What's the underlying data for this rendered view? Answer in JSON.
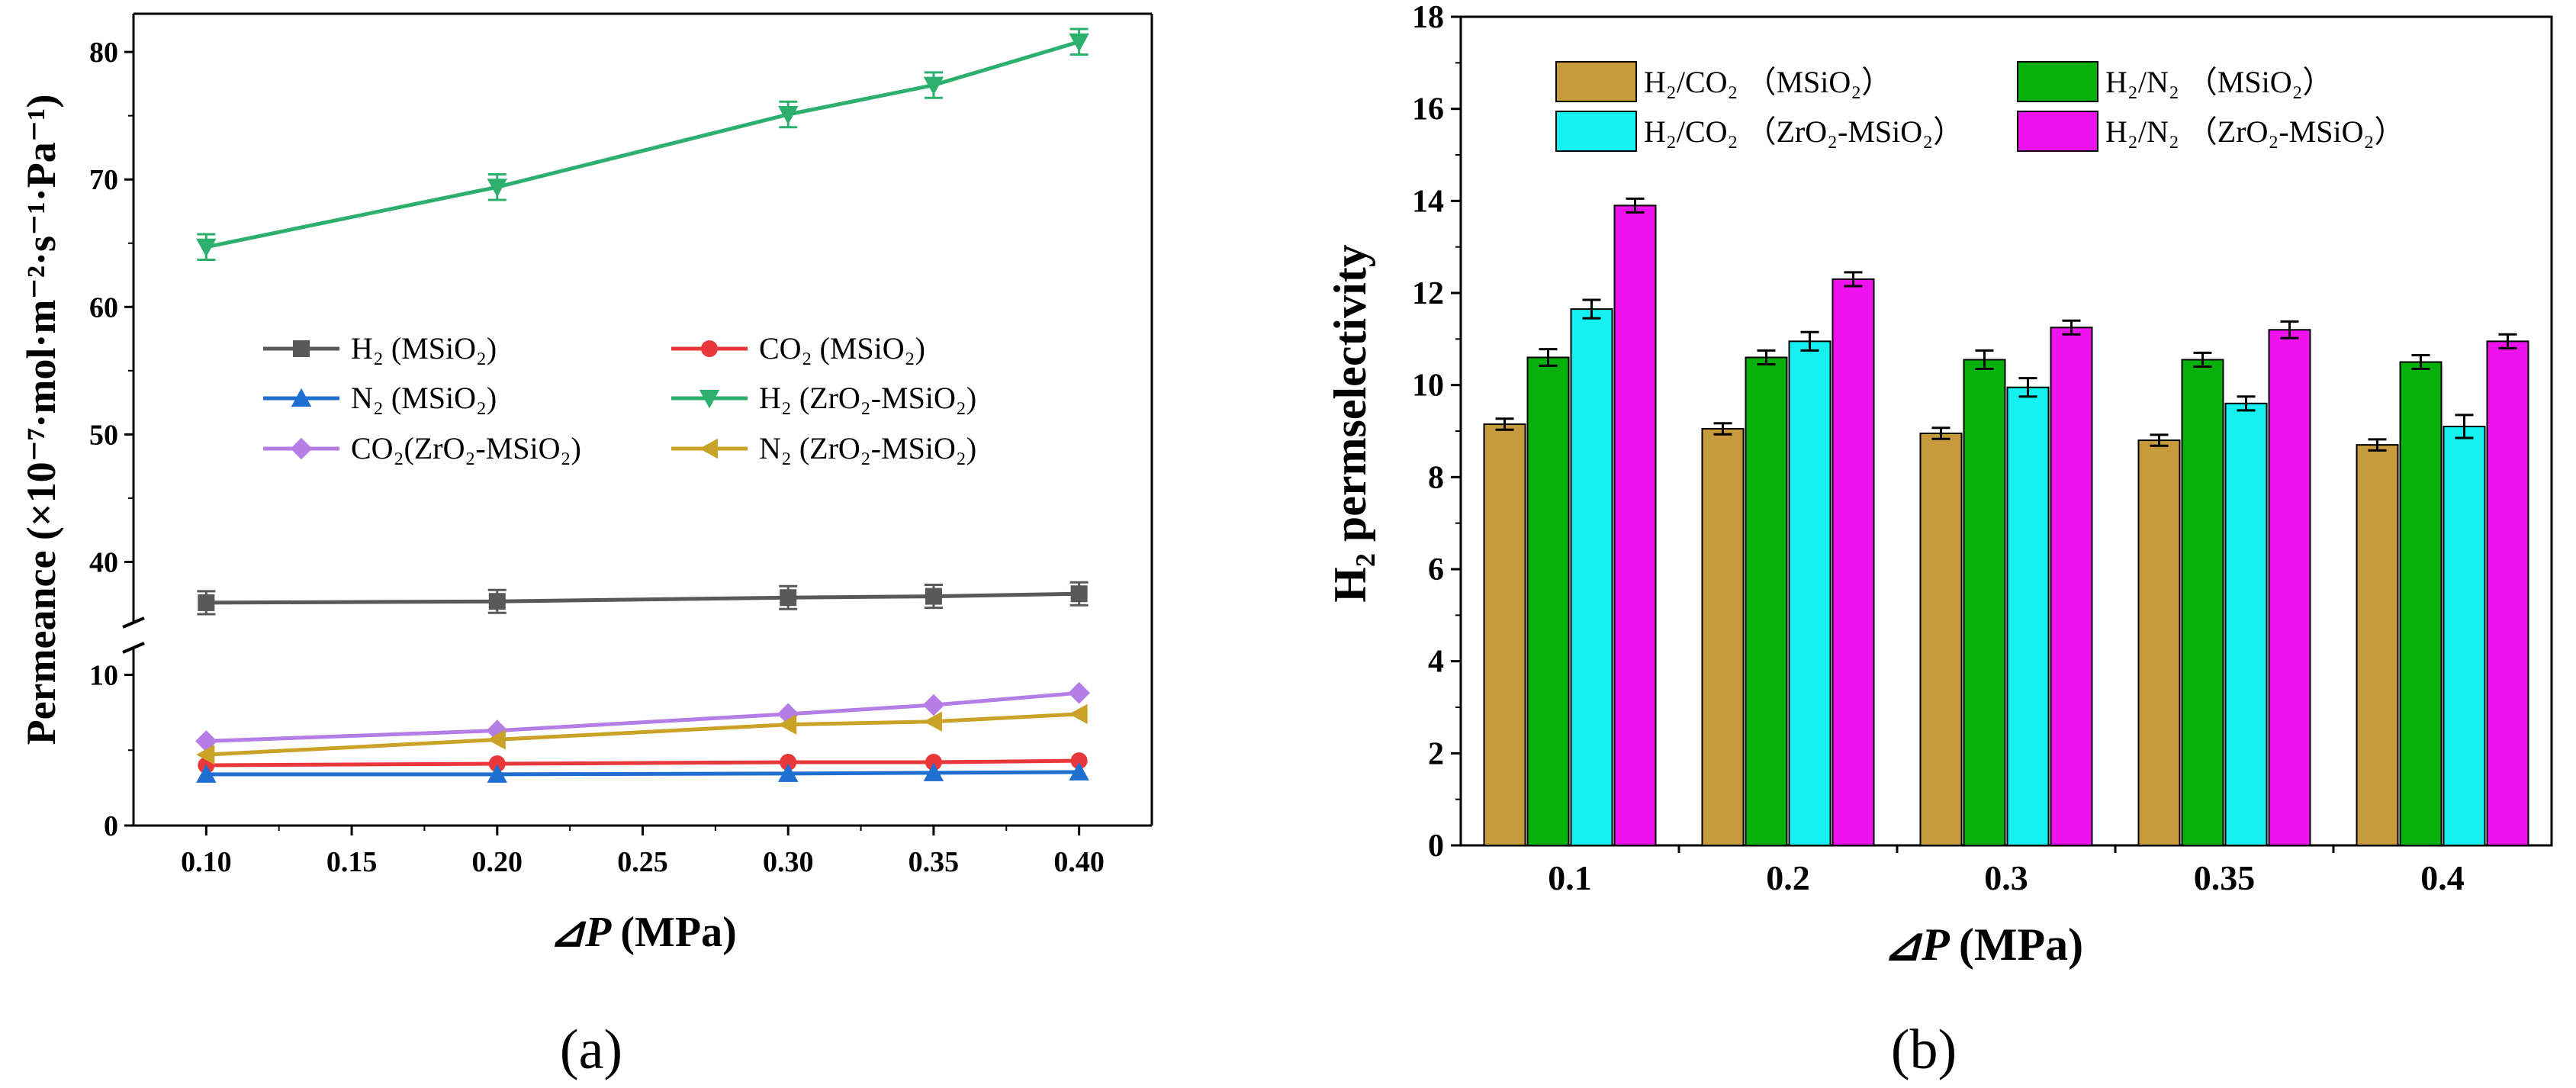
{
  "chart_data": [
    {
      "type": "line",
      "panel_label": "(a)",
      "xlabel_symbol": "⊿P",
      "xlabel_unit": "(MPa)",
      "ylabel": "Permeance (×10⁻⁷·mol·m⁻²·s⁻¹·Pa⁻¹)",
      "x": [
        0.1,
        0.2,
        0.3,
        0.35,
        0.4
      ],
      "x_ticks": [
        "0.10",
        "0.15",
        "0.20",
        "0.25",
        "0.30",
        "0.35",
        "0.40"
      ],
      "y_ticks_lower": [
        "0",
        "10"
      ],
      "y_ticks_upper": [
        "40",
        "50",
        "60",
        "70",
        "80"
      ],
      "y_break": [
        12,
        35
      ],
      "series": [
        {
          "name": "H₂      (MSiO₂)",
          "color": "#595959",
          "marker": "square",
          "values": [
            36.8,
            36.9,
            37.2,
            37.3,
            37.5
          ],
          "err": [
            0.9,
            0.9,
            0.9,
            0.9,
            0.9
          ]
        },
        {
          "name": "CO₂   (MSiO₂)",
          "color": "#e8383b",
          "marker": "circle",
          "values": [
            4.0,
            4.1,
            4.2,
            4.2,
            4.3
          ],
          "err": [
            0,
            0,
            0,
            0,
            0
          ]
        },
        {
          "name": "N₂      (MSiO₂)",
          "color": "#1f6fd0",
          "marker": "triangle-up",
          "values": [
            3.4,
            3.4,
            3.45,
            3.5,
            3.55
          ],
          "err": [
            0,
            0,
            0,
            0,
            0
          ]
        },
        {
          "name": "H₂   (ZrO₂-MSiO₂)",
          "color": "#2db06e",
          "marker": "triangle-down",
          "values": [
            64.7,
            69.4,
            75.1,
            77.4,
            80.8
          ],
          "err": [
            1.0,
            1.0,
            1.0,
            1.0,
            1.0
          ]
        },
        {
          "name": "CO₂(ZrO₂-MSiO₂)",
          "color": "#b57de6",
          "marker": "diamond",
          "values": [
            5.6,
            6.3,
            7.4,
            8.0,
            8.8
          ],
          "err": [
            0,
            0,
            0,
            0,
            0
          ]
        },
        {
          "name": "N₂   (ZrO₂-MSiO₂)",
          "color": "#c9a227",
          "marker": "triangle-left",
          "values": [
            4.7,
            5.7,
            6.7,
            6.9,
            7.4
          ],
          "err": [
            0,
            0,
            0,
            0,
            0
          ]
        }
      ]
    },
    {
      "type": "bar",
      "panel_label": "(b)",
      "xlabel_symbol": "⊿P",
      "xlabel_unit": "(MPa)",
      "ylabel": "H₂ permselectivity",
      "categories": [
        "0.1",
        "0.2",
        "0.3",
        "0.35",
        "0.4"
      ],
      "ylim": [
        0,
        18
      ],
      "y_ticks": [
        "0",
        "2",
        "4",
        "6",
        "8",
        "10",
        "12",
        "14",
        "16",
        "18"
      ],
      "series": [
        {
          "name": "H₂/CO₂ （MSiO₂）",
          "color": "#c89a3e",
          "values": [
            9.15,
            9.05,
            8.95,
            8.8,
            8.7
          ],
          "err": [
            0.12,
            0.12,
            0.12,
            0.12,
            0.12
          ]
        },
        {
          "name": "H₂/N₂ （MSiO₂）",
          "color": "#06b10c",
          "values": [
            10.6,
            10.6,
            10.55,
            10.55,
            10.5
          ],
          "err": [
            0.18,
            0.15,
            0.2,
            0.15,
            0.15
          ]
        },
        {
          "name": "H₂/CO₂ （ZrO₂-MSiO₂）",
          "color": "#16f0f0",
          "values": [
            11.65,
            10.95,
            9.95,
            9.6,
            9.1
          ],
          "err": [
            0.2,
            0.2,
            0.2,
            0.15,
            0.25
          ]
        },
        {
          "name": "H₂/N₂ （ZrO₂-MSiO₂）",
          "color": "#ee12ee",
          "values": [
            13.9,
            12.3,
            11.25,
            11.2,
            10.95
          ],
          "err": [
            0.15,
            0.15,
            0.15,
            0.18,
            0.15
          ]
        }
      ]
    }
  ]
}
